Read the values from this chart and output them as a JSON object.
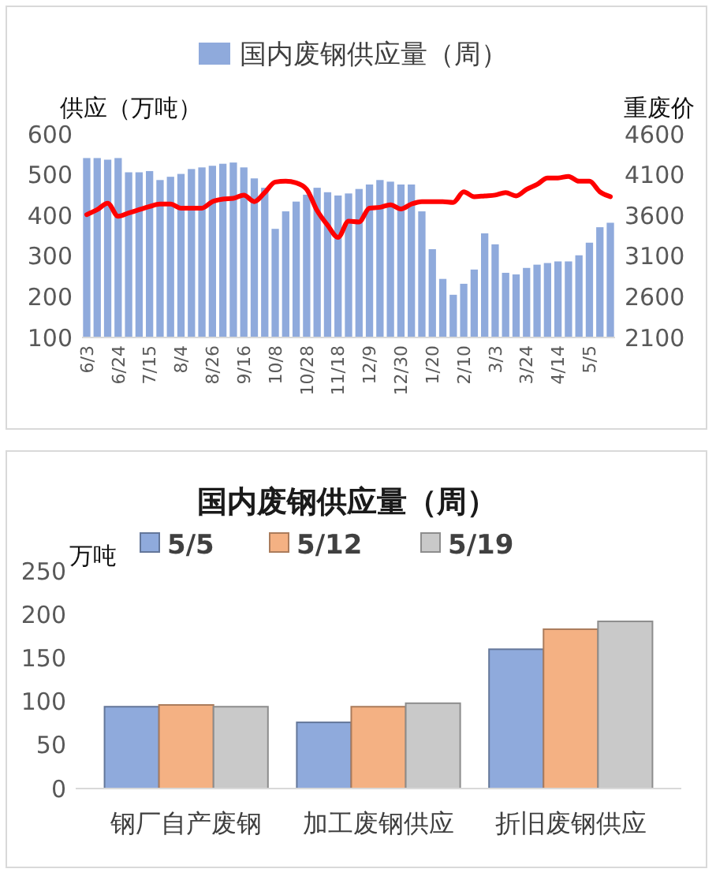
{
  "chart_data": [
    {
      "type": "bar",
      "ylabel": "供应（万吨）",
      "y2label": "重废价",
      "categories": [
        "6/3",
        null,
        null,
        "6/24",
        null,
        null,
        "7/15",
        null,
        null,
        "8/4",
        null,
        null,
        "8/26",
        null,
        null,
        "9/16",
        null,
        null,
        "10/8",
        null,
        null,
        "10/28",
        null,
        null,
        "11/18",
        null,
        null,
        "12/9",
        null,
        null,
        "12/30",
        null,
        null,
        "1/20",
        null,
        null,
        "2/10",
        null,
        null,
        "3/3",
        null,
        null,
        "3/24",
        null,
        null,
        "4/14",
        null,
        null,
        "5/5",
        null,
        null
      ],
      "series": [
        {
          "name": "国内废钢供应量（周）",
          "color": "#8faadc",
          "values": [
            541,
            541,
            537,
            541,
            506,
            506,
            509,
            487,
            495,
            502,
            514,
            518,
            522,
            527,
            530,
            518,
            491,
            468,
            367,
            410,
            434,
            451,
            468,
            457,
            449,
            454,
            465,
            476,
            487,
            483,
            476,
            476,
            410,
            317,
            244,
            205,
            232,
            267,
            356,
            329,
            259,
            255,
            271,
            279,
            283,
            287,
            287,
            302,
            333,
            371,
            382
          ]
        },
        {
          "type": "line",
          "axis": "y2",
          "color": "#ff0000",
          "values": [
            3610,
            3670,
            3750,
            3590,
            3630,
            3670,
            3710,
            3740,
            3740,
            3690,
            3690,
            3690,
            3770,
            3800,
            3810,
            3850,
            3770,
            3880,
            4010,
            4020,
            4000,
            3920,
            3660,
            3480,
            3330,
            3530,
            3520,
            3690,
            3700,
            3730,
            3680,
            3740,
            3770,
            3770,
            3770,
            3760,
            3890,
            3830,
            3840,
            3850,
            3880,
            3840,
            3920,
            3980,
            4060,
            4060,
            4080,
            4020,
            4020,
            3890,
            3830
          ]
        }
      ],
      "ylim": [
        100,
        600
      ],
      "yticks": [
        100,
        200,
        300,
        400,
        500,
        600
      ],
      "y2lim": [
        2100,
        4600
      ],
      "y2ticks": [
        2100,
        2600,
        3100,
        3600,
        4100,
        4600
      ],
      "legend": "top",
      "grid": false
    },
    {
      "type": "bar",
      "title": "国内废钢供应量（周）",
      "ylabel": "万吨",
      "categories": [
        "钢厂自产废钢",
        "加工废钢供应",
        "折旧废钢供应"
      ],
      "series": [
        {
          "name": "5/5",
          "color": "#8faadc",
          "values": [
            94,
            76,
            160
          ]
        },
        {
          "name": "5/12",
          "color": "#f4b183",
          "values": [
            96,
            94,
            183
          ]
        },
        {
          "name": "5/19",
          "color": "#c9c9c9",
          "values": [
            94,
            98,
            192
          ]
        }
      ],
      "ylim": [
        0,
        250
      ],
      "yticks": [
        0,
        50,
        100,
        150,
        200,
        250
      ],
      "legend": "top",
      "grid": false
    }
  ]
}
